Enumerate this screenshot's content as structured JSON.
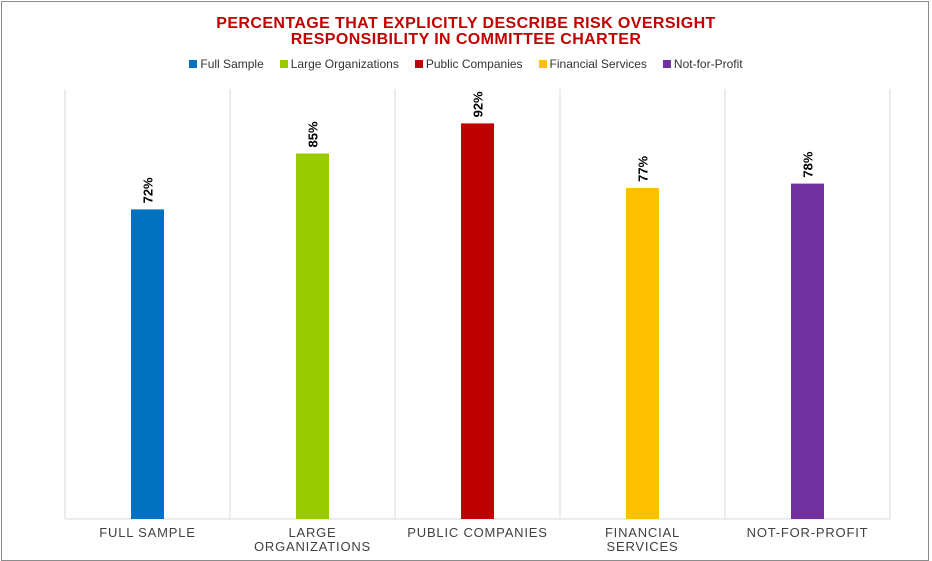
{
  "chart_data": {
    "type": "bar",
    "title_lines": [
      "PERCENTAGE THAT EXPLICITLY DESCRIBE RISK OVERSIGHT",
      "RESPONSIBILITY IN COMMITTEE CHARTER"
    ],
    "categories": [
      "FULL SAMPLE",
      "LARGE ORGANIZATIONS",
      "PUBLIC COMPANIES",
      "FINANCIAL SERVICES",
      "NOT-FOR-PROFIT"
    ],
    "category_label_lines": [
      [
        "FULL SAMPLE"
      ],
      [
        "LARGE",
        "ORGANIZATIONS"
      ],
      [
        "PUBLIC COMPANIES"
      ],
      [
        "FINANCIAL",
        "SERVICES"
      ],
      [
        "NOT-FOR-PROFIT"
      ]
    ],
    "values": [
      72,
      85,
      92,
      77,
      78
    ],
    "data_labels": [
      "72%",
      "85%",
      "92%",
      "77%",
      "78%"
    ],
    "legend": [
      {
        "name": "Full Sample",
        "color": "#0070c0"
      },
      {
        "name": "Large Organizations",
        "color": "#99cc00"
      },
      {
        "name": "Public Companies",
        "color": "#c00000"
      },
      {
        "name": "Financial Services",
        "color": "#ffc000"
      },
      {
        "name": "Not-for-Profit",
        "color": "#7030a0"
      }
    ],
    "legend_position": "top",
    "ylim": [
      0,
      100
    ],
    "grid": "vertical category separators",
    "colors": {
      "title": "#c00000"
    }
  }
}
